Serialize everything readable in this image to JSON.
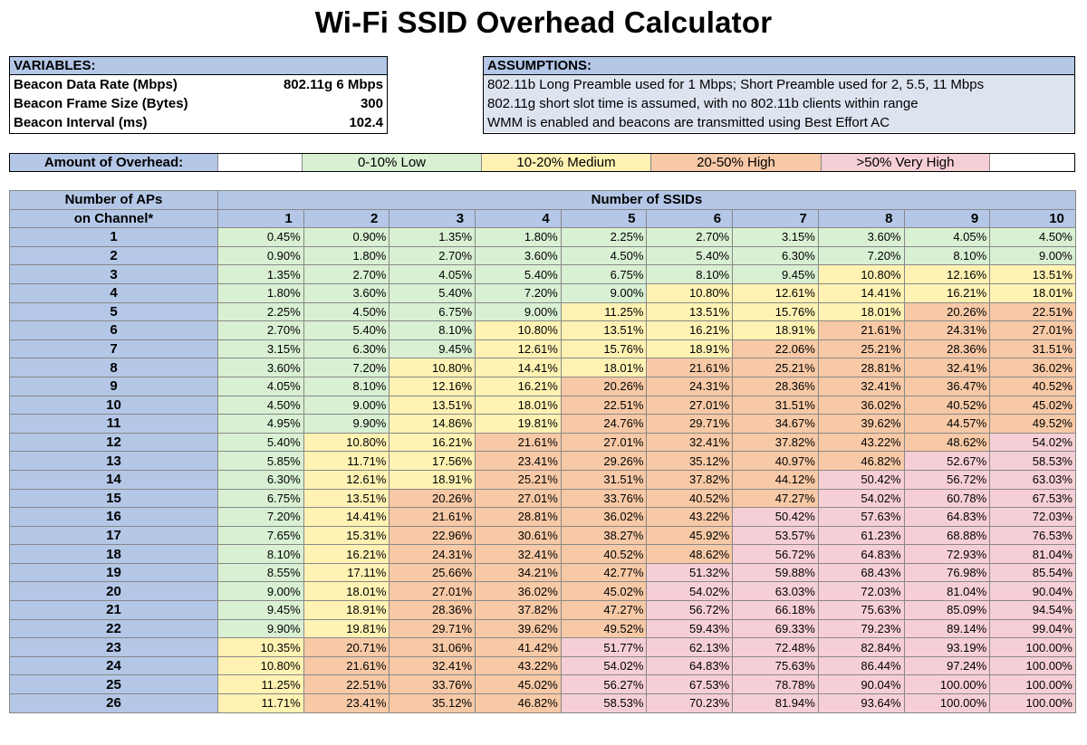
{
  "title": "Wi-Fi SSID Overhead Calculator",
  "variables": {
    "header": "VARIABLES:",
    "rows": [
      {
        "label": "Beacon Data Rate (Mbps)",
        "value": "802.11g 6 Mbps"
      },
      {
        "label": "Beacon Frame Size (Bytes)",
        "value": "300"
      },
      {
        "label": "Beacon Interval (ms)",
        "value": "102.4"
      }
    ]
  },
  "assumptions": {
    "header": "ASSUMPTIONS:",
    "rows": [
      "802.11b Long Preamble used for 1 Mbps; Short Preamble used for 2, 5.5, 11 Mbps",
      "802.11g short slot time is assumed, with no 802.11b clients within range",
      "WMM is enabled and beacons are transmitted using Best Effort AC"
    ]
  },
  "legend": {
    "label": "Amount of Overhead:",
    "low": "0-10% Low",
    "medium": "10-20% Medium",
    "high": "20-50% High",
    "very_high": ">50% Very High"
  },
  "colors": {
    "header_blue": "#b4c7e7",
    "low": "#d9f0d3",
    "medium": "#fff2b3",
    "high": "#f7c9a6",
    "very_high": "#f6cfd6"
  },
  "table": {
    "ap_header_line1": "Number of APs",
    "ap_header_line2": "on Channel*",
    "ssid_header": "Number of SSIDs",
    "ssid_columns": [
      "1",
      "2",
      "3",
      "4",
      "5",
      "6",
      "7",
      "8",
      "9",
      "10"
    ],
    "rows": [
      {
        "ap": "1",
        "values": [
          "0.45%",
          "0.90%",
          "1.35%",
          "1.80%",
          "2.25%",
          "2.70%",
          "3.15%",
          "3.60%",
          "4.05%",
          "4.50%"
        ]
      },
      {
        "ap": "2",
        "values": [
          "0.90%",
          "1.80%",
          "2.70%",
          "3.60%",
          "4.50%",
          "5.40%",
          "6.30%",
          "7.20%",
          "8.10%",
          "9.00%"
        ]
      },
      {
        "ap": "3",
        "values": [
          "1.35%",
          "2.70%",
          "4.05%",
          "5.40%",
          "6.75%",
          "8.10%",
          "9.45%",
          "10.80%",
          "12.16%",
          "13.51%"
        ]
      },
      {
        "ap": "4",
        "values": [
          "1.80%",
          "3.60%",
          "5.40%",
          "7.20%",
          "9.00%",
          "10.80%",
          "12.61%",
          "14.41%",
          "16.21%",
          "18.01%"
        ]
      },
      {
        "ap": "5",
        "values": [
          "2.25%",
          "4.50%",
          "6.75%",
          "9.00%",
          "11.25%",
          "13.51%",
          "15.76%",
          "18.01%",
          "20.26%",
          "22.51%"
        ]
      },
      {
        "ap": "6",
        "values": [
          "2.70%",
          "5.40%",
          "8.10%",
          "10.80%",
          "13.51%",
          "16.21%",
          "18.91%",
          "21.61%",
          "24.31%",
          "27.01%"
        ]
      },
      {
        "ap": "7",
        "values": [
          "3.15%",
          "6.30%",
          "9.45%",
          "12.61%",
          "15.76%",
          "18.91%",
          "22.06%",
          "25.21%",
          "28.36%",
          "31.51%"
        ]
      },
      {
        "ap": "8",
        "values": [
          "3.60%",
          "7.20%",
          "10.80%",
          "14.41%",
          "18.01%",
          "21.61%",
          "25.21%",
          "28.81%",
          "32.41%",
          "36.02%"
        ]
      },
      {
        "ap": "9",
        "values": [
          "4.05%",
          "8.10%",
          "12.16%",
          "16.21%",
          "20.26%",
          "24.31%",
          "28.36%",
          "32.41%",
          "36.47%",
          "40.52%"
        ]
      },
      {
        "ap": "10",
        "values": [
          "4.50%",
          "9.00%",
          "13.51%",
          "18.01%",
          "22.51%",
          "27.01%",
          "31.51%",
          "36.02%",
          "40.52%",
          "45.02%"
        ]
      },
      {
        "ap": "11",
        "values": [
          "4.95%",
          "9.90%",
          "14.86%",
          "19.81%",
          "24.76%",
          "29.71%",
          "34.67%",
          "39.62%",
          "44.57%",
          "49.52%"
        ]
      },
      {
        "ap": "12",
        "values": [
          "5.40%",
          "10.80%",
          "16.21%",
          "21.61%",
          "27.01%",
          "32.41%",
          "37.82%",
          "43.22%",
          "48.62%",
          "54.02%"
        ]
      },
      {
        "ap": "13",
        "values": [
          "5.85%",
          "11.71%",
          "17.56%",
          "23.41%",
          "29.26%",
          "35.12%",
          "40.97%",
          "46.82%",
          "52.67%",
          "58.53%"
        ]
      },
      {
        "ap": "14",
        "values": [
          "6.30%",
          "12.61%",
          "18.91%",
          "25.21%",
          "31.51%",
          "37.82%",
          "44.12%",
          "50.42%",
          "56.72%",
          "63.03%"
        ]
      },
      {
        "ap": "15",
        "values": [
          "6.75%",
          "13.51%",
          "20.26%",
          "27.01%",
          "33.76%",
          "40.52%",
          "47.27%",
          "54.02%",
          "60.78%",
          "67.53%"
        ]
      },
      {
        "ap": "16",
        "values": [
          "7.20%",
          "14.41%",
          "21.61%",
          "28.81%",
          "36.02%",
          "43.22%",
          "50.42%",
          "57.63%",
          "64.83%",
          "72.03%"
        ]
      },
      {
        "ap": "17",
        "values": [
          "7.65%",
          "15.31%",
          "22.96%",
          "30.61%",
          "38.27%",
          "45.92%",
          "53.57%",
          "61.23%",
          "68.88%",
          "76.53%"
        ]
      },
      {
        "ap": "18",
        "values": [
          "8.10%",
          "16.21%",
          "24.31%",
          "32.41%",
          "40.52%",
          "48.62%",
          "56.72%",
          "64.83%",
          "72.93%",
          "81.04%"
        ]
      },
      {
        "ap": "19",
        "values": [
          "8.55%",
          "17.11%",
          "25.66%",
          "34.21%",
          "42.77%",
          "51.32%",
          "59.88%",
          "68.43%",
          "76.98%",
          "85.54%"
        ]
      },
      {
        "ap": "20",
        "values": [
          "9.00%",
          "18.01%",
          "27.01%",
          "36.02%",
          "45.02%",
          "54.02%",
          "63.03%",
          "72.03%",
          "81.04%",
          "90.04%"
        ]
      },
      {
        "ap": "21",
        "values": [
          "9.45%",
          "18.91%",
          "28.36%",
          "37.82%",
          "47.27%",
          "56.72%",
          "66.18%",
          "75.63%",
          "85.09%",
          "94.54%"
        ]
      },
      {
        "ap": "22",
        "values": [
          "9.90%",
          "19.81%",
          "29.71%",
          "39.62%",
          "49.52%",
          "59.43%",
          "69.33%",
          "79.23%",
          "89.14%",
          "99.04%"
        ]
      },
      {
        "ap": "23",
        "values": [
          "10.35%",
          "20.71%",
          "31.06%",
          "41.42%",
          "51.77%",
          "62.13%",
          "72.48%",
          "82.84%",
          "93.19%",
          "100.00%"
        ]
      },
      {
        "ap": "24",
        "values": [
          "10.80%",
          "21.61%",
          "32.41%",
          "43.22%",
          "54.02%",
          "64.83%",
          "75.63%",
          "86.44%",
          "97.24%",
          "100.00%"
        ]
      },
      {
        "ap": "25",
        "values": [
          "11.25%",
          "22.51%",
          "33.76%",
          "45.02%",
          "56.27%",
          "67.53%",
          "78.78%",
          "90.04%",
          "100.00%",
          "100.00%"
        ]
      },
      {
        "ap": "26",
        "values": [
          "11.71%",
          "23.41%",
          "35.12%",
          "46.82%",
          "58.53%",
          "70.23%",
          "81.94%",
          "93.64%",
          "100.00%",
          "100.00%"
        ]
      }
    ]
  }
}
